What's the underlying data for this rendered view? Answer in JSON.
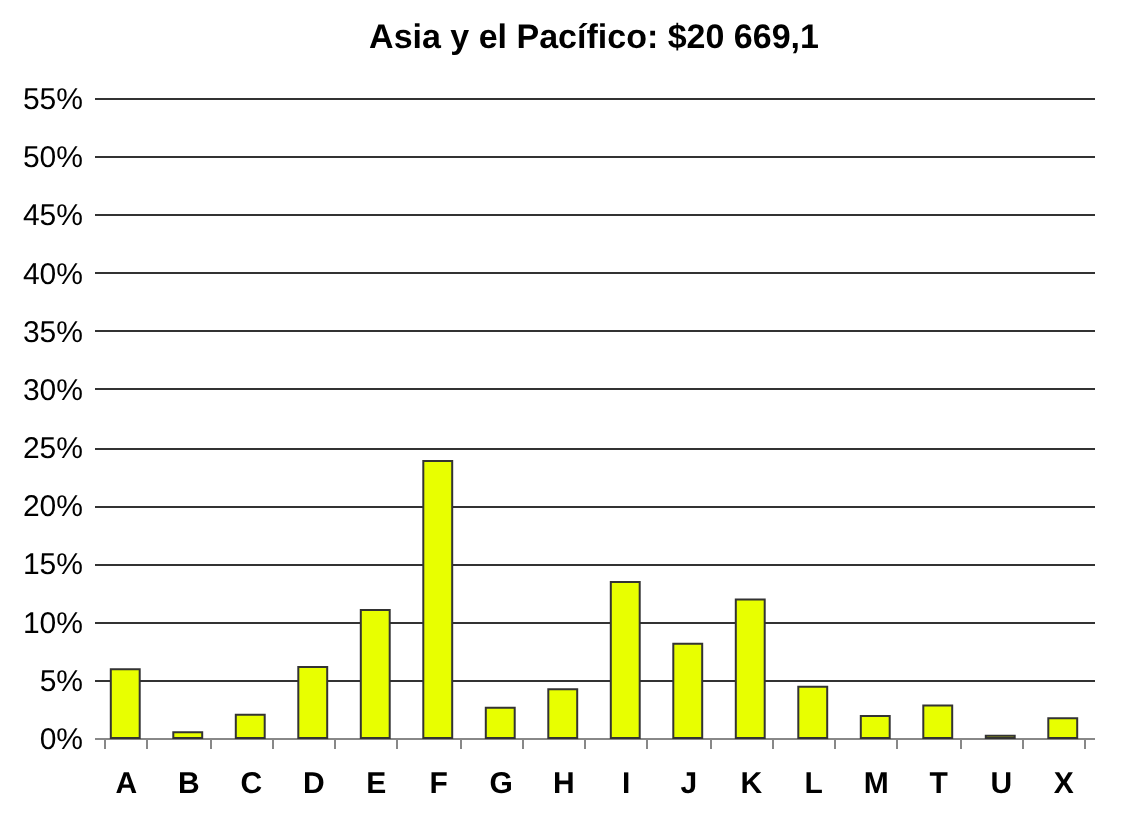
{
  "chart_data": {
    "type": "bar",
    "title": "Asia y el Pacífico:  $20 669,1",
    "categories": [
      "A",
      "B",
      "C",
      "D",
      "E",
      "F",
      "G",
      "H",
      "I",
      "J",
      "K",
      "L",
      "M",
      "T",
      "U",
      "X"
    ],
    "values": [
      5.9,
      0.5,
      2.0,
      6.1,
      11.0,
      23.8,
      2.6,
      4.2,
      13.4,
      8.1,
      11.9,
      4.4,
      1.9,
      2.8,
      0.2,
      1.7
    ],
    "color": "#e8ff00",
    "ylim": [
      0,
      55
    ],
    "yticks": [
      {
        "value": 0,
        "label": "0%"
      },
      {
        "value": 5,
        "label": "5%"
      },
      {
        "value": 10,
        "label": "10%"
      },
      {
        "value": 15,
        "label": "15%"
      },
      {
        "value": 20,
        "label": "20%"
      },
      {
        "value": 25,
        "label": "25%"
      },
      {
        "value": 30,
        "label": "30%"
      },
      {
        "value": 35,
        "label": "35%"
      },
      {
        "value": 40,
        "label": "40%"
      },
      {
        "value": 45,
        "label": "45%"
      },
      {
        "value": 50,
        "label": "50%"
      },
      {
        "value": 55,
        "label": "55%"
      }
    ],
    "grid": "y"
  }
}
